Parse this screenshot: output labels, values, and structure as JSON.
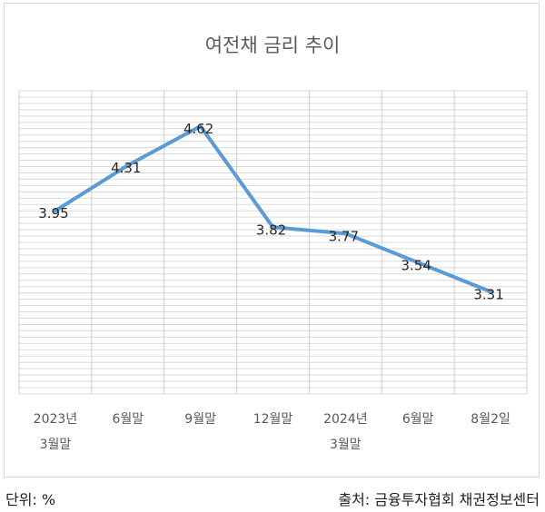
{
  "chart_data": {
    "type": "line",
    "title": "여전채 금리 추이",
    "categories": [
      [
        "2023년",
        "3월말"
      ],
      [
        "6월말"
      ],
      [
        "9월말"
      ],
      [
        "12월말"
      ],
      [
        "2024년",
        "3월말"
      ],
      [
        "6월말"
      ],
      [
        "8월2일"
      ]
    ],
    "series": [
      {
        "values": [
          3.95,
          4.31,
          4.62,
          3.82,
          3.77,
          3.54,
          3.31
        ]
      }
    ],
    "data_labels": [
      "3.95",
      "4.31",
      "4.62",
      "3.82",
      "3.77",
      "3.54",
      "3.31"
    ],
    "ylim": [
      2.5,
      4.9
    ],
    "grid": true,
    "colors": {
      "line": "#5b9bd5",
      "grid": "#d9d9d9"
    }
  },
  "footer": {
    "unit": "단위: %",
    "source": "출처: 금융투자협회 채권정보센터"
  }
}
